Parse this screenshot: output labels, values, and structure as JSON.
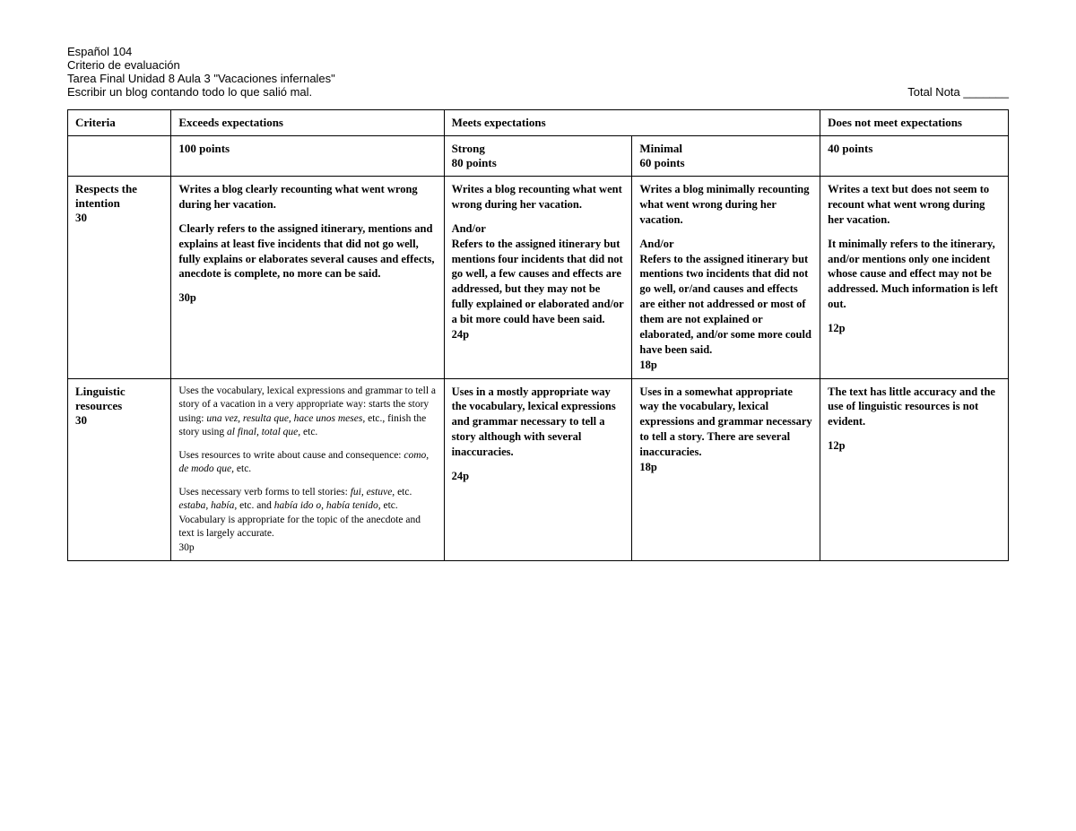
{
  "header": {
    "line1": "Español 104",
    "line2": "Criterio de evaluación",
    "line3": "Tarea Final Unidad 8 Aula 3 \"Vacaciones infernales\"",
    "line4": "Escribir un blog contando todo lo que salió mal.",
    "total_label": "Total Nota _______"
  },
  "table": {
    "head_row1": {
      "criteria": "Criteria",
      "exceeds": "Exceeds expectations",
      "meets": "Meets expectations",
      "notmeet": "Does not meet expectations"
    },
    "head_row2": {
      "c100": "100 points",
      "strong_label": "Strong",
      "strong_pts": "80 points",
      "minimal_label": "Minimal",
      "minimal_pts": "60 points",
      "c40": "40 points"
    },
    "row1": {
      "criteria_name": "Respects the intention",
      "criteria_weight": "30",
      "exceeds_p1": "Writes a blog clearly recounting what went wrong during her vacation.",
      "exceeds_p2": "Clearly refers to the assigned itinerary, mentions and explains at least five incidents that did not go well, fully explains or elaborates several causes and effects, anecdote is complete, no more can be said.",
      "exceeds_pts": "30p",
      "strong_p1": "Writes a blog recounting what went wrong during her vacation.",
      "strong_andor": "And/or",
      "strong_p2": "Refers to the assigned itinerary but mentions four incidents that did not go well, a few causes and effects are addressed, but they may not be fully explained or elaborated and/or a bit more could have been said.",
      "strong_pts": "24p",
      "minimal_p1": "Writes a blog minimally recounting what went wrong during her vacation.",
      "minimal_andor": "And/or",
      "minimal_p2": "Refers to the assigned itinerary but mentions two  incidents that did not go well, or/and causes and effects are either not addressed or most of them are not explained or elaborated, and/or some more could have been said.",
      "minimal_pts": "18p",
      "notmeet_p1": "Writes a text but does not seem to recount what went wrong during her vacation.",
      "notmeet_p2": "It minimally refers to the itinerary, and/or mentions only one incident whose cause and effect may not be addressed. Much information is left out.",
      "notmeet_pts": "12p"
    },
    "row2": {
      "criteria_name": "Linguistic resources",
      "criteria_weight": "30",
      "exceeds_p1_a": "Uses the vocabulary, lexical expressions and grammar to tell a story of a vacation in a very appropriate way: starts the story using: ",
      "exceeds_p1_i1": "una vez, resulta que, hace unos meses,",
      "exceeds_p1_b": " etc., finish the story using ",
      "exceeds_p1_i2": "al final, total que,",
      "exceeds_p1_c": " etc.",
      "exceeds_p2_a": "Uses resources to write about cause and consequence: ",
      "exceeds_p2_i1": "como, de modo que,",
      "exceeds_p2_b": " etc.",
      "exceeds_p3_a": "Uses necessary verb forms to tell stories: ",
      "exceeds_p3_i1": "fui, estuve,",
      "exceeds_p3_b": " etc. ",
      "exceeds_p3_i2": "estaba, había,",
      "exceeds_p3_c": " etc. and ",
      "exceeds_p3_i3": "había ido o, había tenido,",
      "exceeds_p3_d": " etc.",
      "exceeds_p4": "Vocabulary is appropriate for the topic of the anecdote and text is largely accurate.",
      "exceeds_pts": "30p",
      "strong_p1": "Uses in a mostly appropriate way the vocabulary, lexical expressions and grammar necessary to tell a story although with several inaccuracies.",
      "strong_pts": "24p",
      "minimal_p1": "Uses in a somewhat appropriate way the vocabulary, lexical expressions and grammar necessary to tell a story. There are several inaccuracies.",
      "minimal_pts": "18p",
      "notmeet_p1": "The text has little accuracy and the use of linguistic resources is not evident.",
      "notmeet_pts": "12p"
    }
  }
}
